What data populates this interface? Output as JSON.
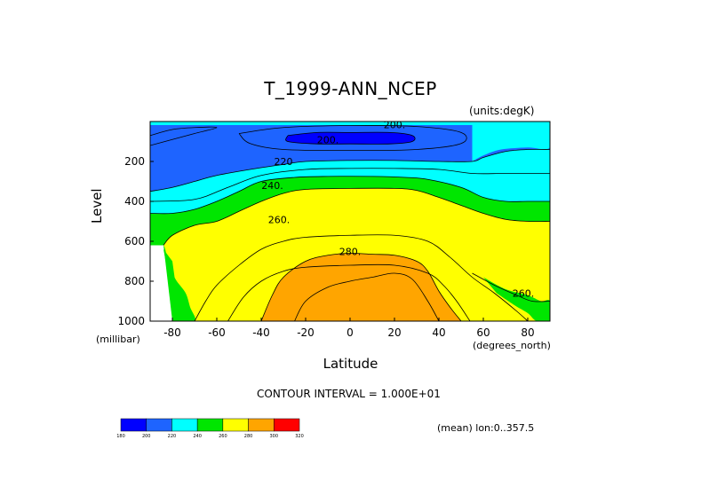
{
  "title": "T_1999-ANN_NCEP",
  "units_note": "(units:degK)",
  "contour_interval_text": "CONTOUR INTERVAL = 1.000E+01",
  "mean_note": "(mean) lon:0..357.5",
  "chart_data": {
    "type": "heatmap",
    "title": "T_1999-ANN_NCEP",
    "xlabel": "Latitude",
    "x_unit": "(degrees_north)",
    "ylabel": "Level",
    "y_unit": "(millibar)",
    "xlim": [
      -90,
      90
    ],
    "ylim": [
      1000,
      0
    ],
    "x_ticks": [
      -80,
      -60,
      -40,
      -20,
      0,
      20,
      40,
      60,
      80
    ],
    "y_ticks": [
      200,
      400,
      600,
      800,
      1000
    ],
    "contour_levels": [
      200,
      220,
      240,
      260,
      280
    ],
    "contour_labels": [
      {
        "text": "200.",
        "lat": 20,
        "level": 15
      },
      {
        "text": "200.",
        "lat": -10,
        "level": 90
      },
      {
        "text": "220",
        "lat": -30,
        "level": 200
      },
      {
        "text": "240.",
        "lat": -35,
        "level": 320
      },
      {
        "text": "260.",
        "lat": -32,
        "level": 490
      },
      {
        "text": "280.",
        "lat": 0,
        "level": 650
      },
      {
        "text": "260.",
        "lat": 78,
        "level": 860
      }
    ],
    "colorbar": {
      "bins": [
        {
          "min": 180,
          "max": 200,
          "color": "#0000ff"
        },
        {
          "min": 200,
          "max": 220,
          "color": "#1e64ff"
        },
        {
          "min": 220,
          "max": 240,
          "color": "#00ffff"
        },
        {
          "min": 240,
          "max": 260,
          "color": "#00e600"
        },
        {
          "min": 260,
          "max": 280,
          "color": "#ffff00"
        },
        {
          "min": 280,
          "max": 300,
          "color": "#ffa500"
        },
        {
          "min": 300,
          "max": 320,
          "color": "#ff0000"
        }
      ],
      "tick_labels": [
        "180",
        "200",
        "220",
        "240",
        "260",
        "280",
        "300",
        "320"
      ]
    },
    "bands": [
      {
        "class": "lt200",
        "color": "#0000ff",
        "boundary_top": [
          [
            -10,
            70
          ],
          [
            10,
            70
          ],
          [
            28,
            72
          ],
          [
            28,
            110
          ],
          [
            10,
            112
          ],
          [
            -10,
            112
          ],
          [
            -30,
            110
          ],
          [
            -30,
            74
          ]
        ]
      },
      {
        "class": "200-220",
        "color": "#1e64ff",
        "boundary": [
          [
            -90,
            350
          ],
          [
            -80,
            330
          ],
          [
            -70,
            300
          ],
          [
            -60,
            270
          ],
          [
            -45,
            240
          ],
          [
            -30,
            215
          ],
          [
            -20,
            200
          ],
          [
            0,
            195
          ],
          [
            20,
            195
          ],
          [
            40,
            200
          ],
          [
            55,
            200
          ],
          [
            60,
            180
          ],
          [
            70,
            150
          ],
          [
            80,
            140
          ],
          [
            90,
            140
          ]
        ]
      },
      {
        "class": "220-240",
        "color": "#00ffff",
        "boundary": [
          [
            -90,
            460
          ],
          [
            -80,
            460
          ],
          [
            -70,
            440
          ],
          [
            -60,
            400
          ],
          [
            -50,
            350
          ],
          [
            -40,
            300
          ],
          [
            -25,
            280
          ],
          [
            -10,
            275
          ],
          [
            10,
            275
          ],
          [
            25,
            280
          ],
          [
            35,
            290
          ],
          [
            50,
            330
          ],
          [
            60,
            380
          ],
          [
            70,
            400
          ],
          [
            80,
            400
          ],
          [
            90,
            400
          ]
        ]
      },
      {
        "class": "240-260",
        "color": "#00e600",
        "boundary": [
          [
            -90,
            620
          ],
          [
            -84,
            620
          ],
          [
            -82,
            720
          ],
          [
            -80,
            760
          ],
          [
            -78,
            800
          ],
          [
            -74,
            860
          ],
          [
            -72,
            930
          ],
          [
            -70,
            1000
          ],
          [
            -80,
            1000
          ]
        ],
        "boundary_main": [
          [
            -84,
            620
          ],
          [
            -80,
            570
          ],
          [
            -70,
            520
          ],
          [
            -60,
            500
          ],
          [
            -50,
            450
          ],
          [
            -40,
            400
          ],
          [
            -30,
            360
          ],
          [
            -20,
            340
          ],
          [
            0,
            335
          ],
          [
            20,
            335
          ],
          [
            30,
            345
          ],
          [
            40,
            380
          ],
          [
            50,
            420
          ],
          [
            60,
            460
          ],
          [
            70,
            490
          ],
          [
            80,
            500
          ],
          [
            90,
            500
          ]
        ]
      },
      {
        "class": "260-280",
        "color": "#ffff00",
        "boundary": [
          [
            -70,
            1000
          ],
          [
            -65,
            900
          ],
          [
            -60,
            820
          ],
          [
            -50,
            720
          ],
          [
            -40,
            640
          ],
          [
            -30,
            600
          ],
          [
            -20,
            580
          ],
          [
            0,
            570
          ],
          [
            20,
            570
          ],
          [
            35,
            600
          ],
          [
            45,
            680
          ],
          [
            55,
            780
          ],
          [
            65,
            860
          ],
          [
            75,
            950
          ],
          [
            80,
            1000
          ]
        ]
      },
      {
        "class": "280-300",
        "color": "#ffa500",
        "boundary": [
          [
            -40,
            1000
          ],
          [
            -35,
            870
          ],
          [
            -30,
            780
          ],
          [
            -20,
            700
          ],
          [
            -10,
            670
          ],
          [
            0,
            660
          ],
          [
            10,
            665
          ],
          [
            20,
            670
          ],
          [
            30,
            700
          ],
          [
            35,
            750
          ],
          [
            40,
            850
          ],
          [
            45,
            930
          ],
          [
            50,
            1000
          ]
        ]
      }
    ]
  }
}
